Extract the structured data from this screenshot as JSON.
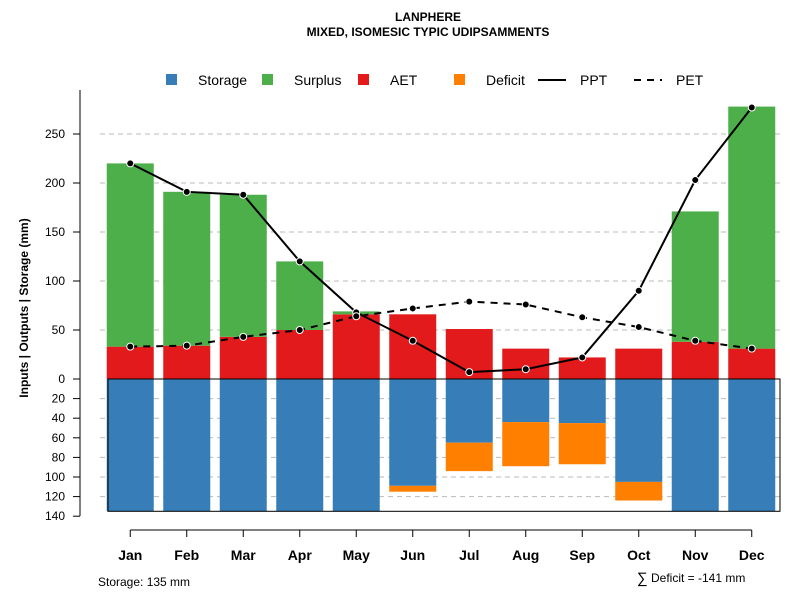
{
  "chart_data": {
    "type": "bar",
    "title": "LANPHERE",
    "subtitle": "MIXED, ISOMESIC TYPIC UDIPSAMMENTS",
    "ylabel": "Inputs | Outputs | Storage   (mm)",
    "categories": [
      "Jan",
      "Feb",
      "Mar",
      "Apr",
      "May",
      "Jun",
      "Jul",
      "Aug",
      "Sep",
      "Oct",
      "Nov",
      "Dec"
    ],
    "upper_ylim": [
      0,
      280
    ],
    "upper_ticks": [
      "0",
      "50",
      "100",
      "150",
      "200",
      "250"
    ],
    "lower_ylim": [
      0,
      140
    ],
    "lower_ticks": [
      "0",
      "20",
      "40",
      "60",
      "80",
      "100",
      "120",
      "140"
    ],
    "series": [
      {
        "name": "AET",
        "color": "#e31a1c",
        "values": [
          33,
          34,
          43,
          50,
          66,
          66,
          51,
          31,
          22,
          31,
          38,
          31
        ]
      },
      {
        "name": "Surplus",
        "color": "#4daf4a",
        "values": [
          187,
          157,
          145,
          70,
          3,
          0,
          0,
          0,
          0,
          0,
          133,
          247
        ]
      },
      {
        "name": "Storage",
        "color": "#377eb8",
        "values": [
          135,
          135,
          135,
          135,
          135,
          109,
          65,
          44,
          45,
          105,
          135,
          135
        ]
      },
      {
        "name": "Deficit",
        "color": "#ff7f00",
        "values": [
          0,
          0,
          0,
          0,
          0,
          6,
          29,
          45,
          42,
          19,
          0,
          0
        ]
      },
      {
        "name": "PPT",
        "style": "solid",
        "values": [
          220,
          191,
          188,
          120,
          68,
          39,
          7,
          10,
          22,
          90,
          203,
          277
        ]
      },
      {
        "name": "PET",
        "style": "dashed",
        "values": [
          33,
          34,
          43,
          50,
          64,
          72,
          79,
          76,
          63,
          53,
          39,
          31
        ]
      }
    ],
    "legend": [
      {
        "label": "Storage",
        "kind": "box",
        "color": "#377eb8"
      },
      {
        "label": "Surplus",
        "kind": "box",
        "color": "#4daf4a"
      },
      {
        "label": "AET",
        "kind": "box",
        "color": "#e31a1c"
      },
      {
        "label": "Deficit",
        "kind": "box",
        "color": "#ff7f00"
      },
      {
        "label": "PPT",
        "kind": "solid"
      },
      {
        "label": "PET",
        "kind": "dashed"
      }
    ],
    "legend_position": "top",
    "grid": true
  },
  "notes": {
    "storage": "Storage: 135 mm",
    "deficit_symbol": "∑",
    "deficit": "Deficit = -141 mm"
  }
}
